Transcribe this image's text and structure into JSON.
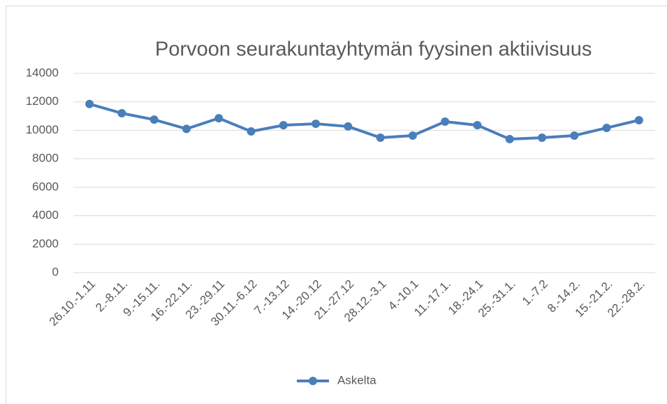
{
  "chart_data": {
    "type": "line",
    "title": "Porvoon seurakuntayhtymän fyysinen aktiivisuus",
    "categories": [
      "26.10.-1.11",
      "2.-8.11.",
      "9.-15.11.",
      "16.-22.11.",
      "23.-29.11",
      "30.11.-6.12",
      "7.-13.12",
      "14.-20.12",
      "21.-27.12",
      "28.12.-3.1",
      "4.-10.1",
      "11.-17.1.",
      "18.-24.1",
      "25.-31.1.",
      "1.-7.2",
      "8.-14.2.",
      "15.-21.2.",
      "22.-28.2."
    ],
    "series": [
      {
        "name": "Askelta",
        "color": "#4a7ebb",
        "values": [
          11850,
          11200,
          10750,
          10100,
          10850,
          9920,
          10360,
          10460,
          10270,
          9480,
          9630,
          10610,
          10360,
          9380,
          9480,
          9630,
          10170,
          10710
        ]
      }
    ],
    "ylim": [
      0,
      14000
    ],
    "yticks": [
      0,
      2000,
      4000,
      6000,
      8000,
      10000,
      12000,
      14000
    ],
    "grid": true,
    "legend": "bottom"
  }
}
